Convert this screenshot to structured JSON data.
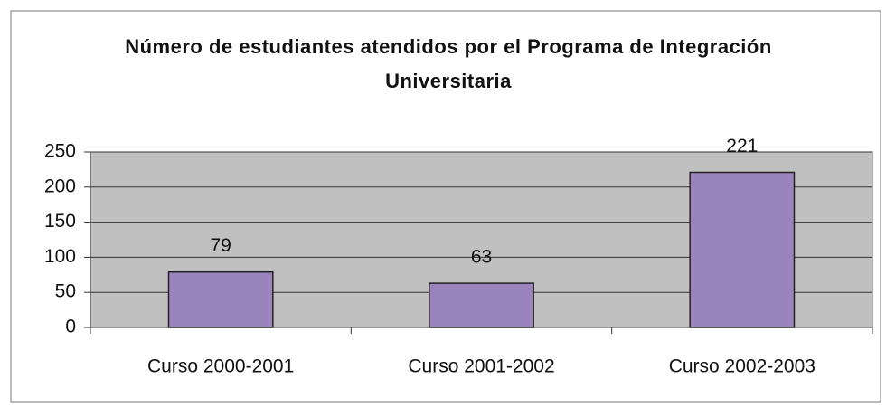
{
  "chart_data": {
    "type": "bar",
    "title": "Número de estudiantes atendidos por el Programa de Integración Universitaria",
    "categories": [
      "Curso 2000-2001",
      "Curso 2001-2002",
      "Curso 2002-2003"
    ],
    "values": [
      79,
      63,
      221
    ],
    "color": "#9a84bd",
    "ylim": [
      0,
      250
    ],
    "yticks": [
      0,
      50,
      100,
      150,
      200,
      250
    ],
    "grid": true
  }
}
